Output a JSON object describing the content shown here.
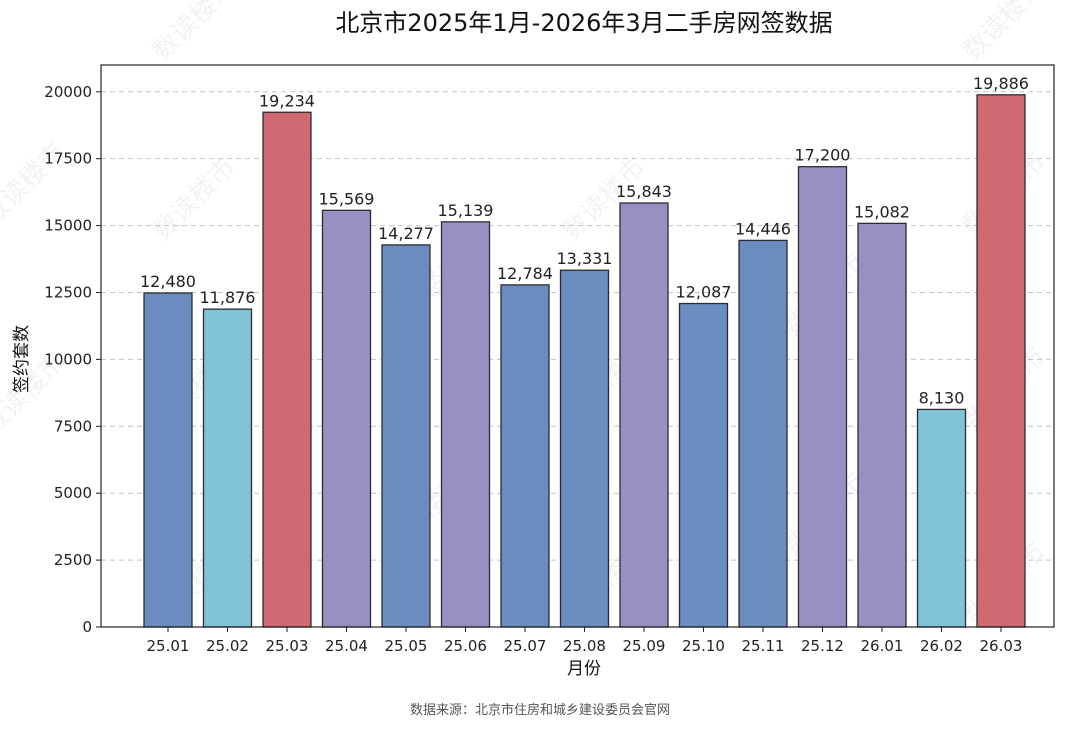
{
  "chart_data": {
    "type": "bar",
    "title": "北京市2025年1月-2026年3月二手房网签数据",
    "xlabel": "月份",
    "ylabel": "签约套数",
    "categories": [
      "25.01",
      "25.02",
      "25.03",
      "25.04",
      "25.05",
      "25.06",
      "25.07",
      "25.08",
      "25.09",
      "25.10",
      "25.11",
      "25.12",
      "26.01",
      "26.02",
      "26.03"
    ],
    "values": [
      12480,
      11876,
      19234,
      15569,
      14277,
      15139,
      12784,
      13331,
      15843,
      12087,
      14446,
      17200,
      15082,
      8130,
      19886
    ],
    "value_labels": [
      "12,480",
      "11,876",
      "19,234",
      "15,569",
      "14,277",
      "15,139",
      "12,784",
      "13,331",
      "15,843",
      "12,087",
      "14,446",
      "17,200",
      "15,082",
      "8,130",
      "19,886"
    ],
    "bar_colors": [
      "#6b8cbf",
      "#7fc3d6",
      "#d06a72",
      "#9a8fc2",
      "#6b8cbf",
      "#9a8fc2",
      "#6b8cbf",
      "#6b8cbf",
      "#9a8fc2",
      "#6b8cbf",
      "#6b8cbf",
      "#9a8fc2",
      "#9a8fc2",
      "#7fc3d6",
      "#d06a72"
    ],
    "ylim": [
      0,
      21000
    ],
    "yticks": [
      0,
      2500,
      5000,
      7500,
      10000,
      12500,
      15000,
      17500,
      20000
    ],
    "ytick_labels": [
      "0",
      "2500",
      "5000",
      "7500",
      "10000",
      "12500",
      "15000",
      "17500",
      "20000"
    ],
    "grid": "horizontal dashed",
    "source": "数据来源：北京市住房和城乡建设委员会官网",
    "watermark": "数读楼市"
  }
}
